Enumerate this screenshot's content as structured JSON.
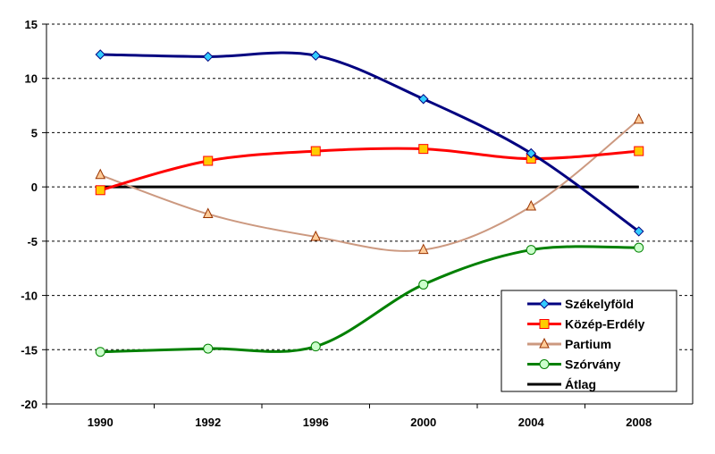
{
  "chart_data": {
    "type": "line",
    "title": "",
    "xlabel": "",
    "ylabel": "",
    "categories": [
      "1990",
      "1992",
      "1996",
      "2000",
      "2004",
      "2008"
    ],
    "ylim": [
      -20,
      15
    ],
    "yticks": [
      15,
      10,
      5,
      0,
      -5,
      -10,
      -15,
      -20
    ],
    "grid": "horizontal dashed",
    "legend_position": "bottom-right",
    "series": [
      {
        "name": "Székelyföld",
        "color": "#000080",
        "marker": "diamond",
        "marker_color": "#33CCFF",
        "values": [
          12.2,
          12.0,
          12.1,
          8.1,
          3.1,
          -4.1
        ]
      },
      {
        "name": "Közép-Erdély",
        "color": "#FF0000",
        "marker": "square",
        "marker_color": "#FFCC00",
        "values": [
          -0.3,
          2.4,
          3.3,
          3.5,
          2.6,
          3.3
        ]
      },
      {
        "name": "Partium",
        "color": "#CC9980",
        "marker": "triangle",
        "marker_color": "#FFCC99",
        "values": [
          1.1,
          -2.5,
          -4.6,
          -5.8,
          -1.8,
          6.2
        ]
      },
      {
        "name": "Szórvány",
        "color": "#008000",
        "marker": "circle",
        "marker_color": "#CCFFCC",
        "values": [
          -15.2,
          -14.9,
          -14.7,
          -9.0,
          -5.8,
          -5.6
        ]
      },
      {
        "name": "Átlag",
        "color": "#000000",
        "marker": "none",
        "marker_color": "",
        "values": [
          0,
          0,
          0,
          0,
          0,
          0
        ]
      }
    ]
  }
}
